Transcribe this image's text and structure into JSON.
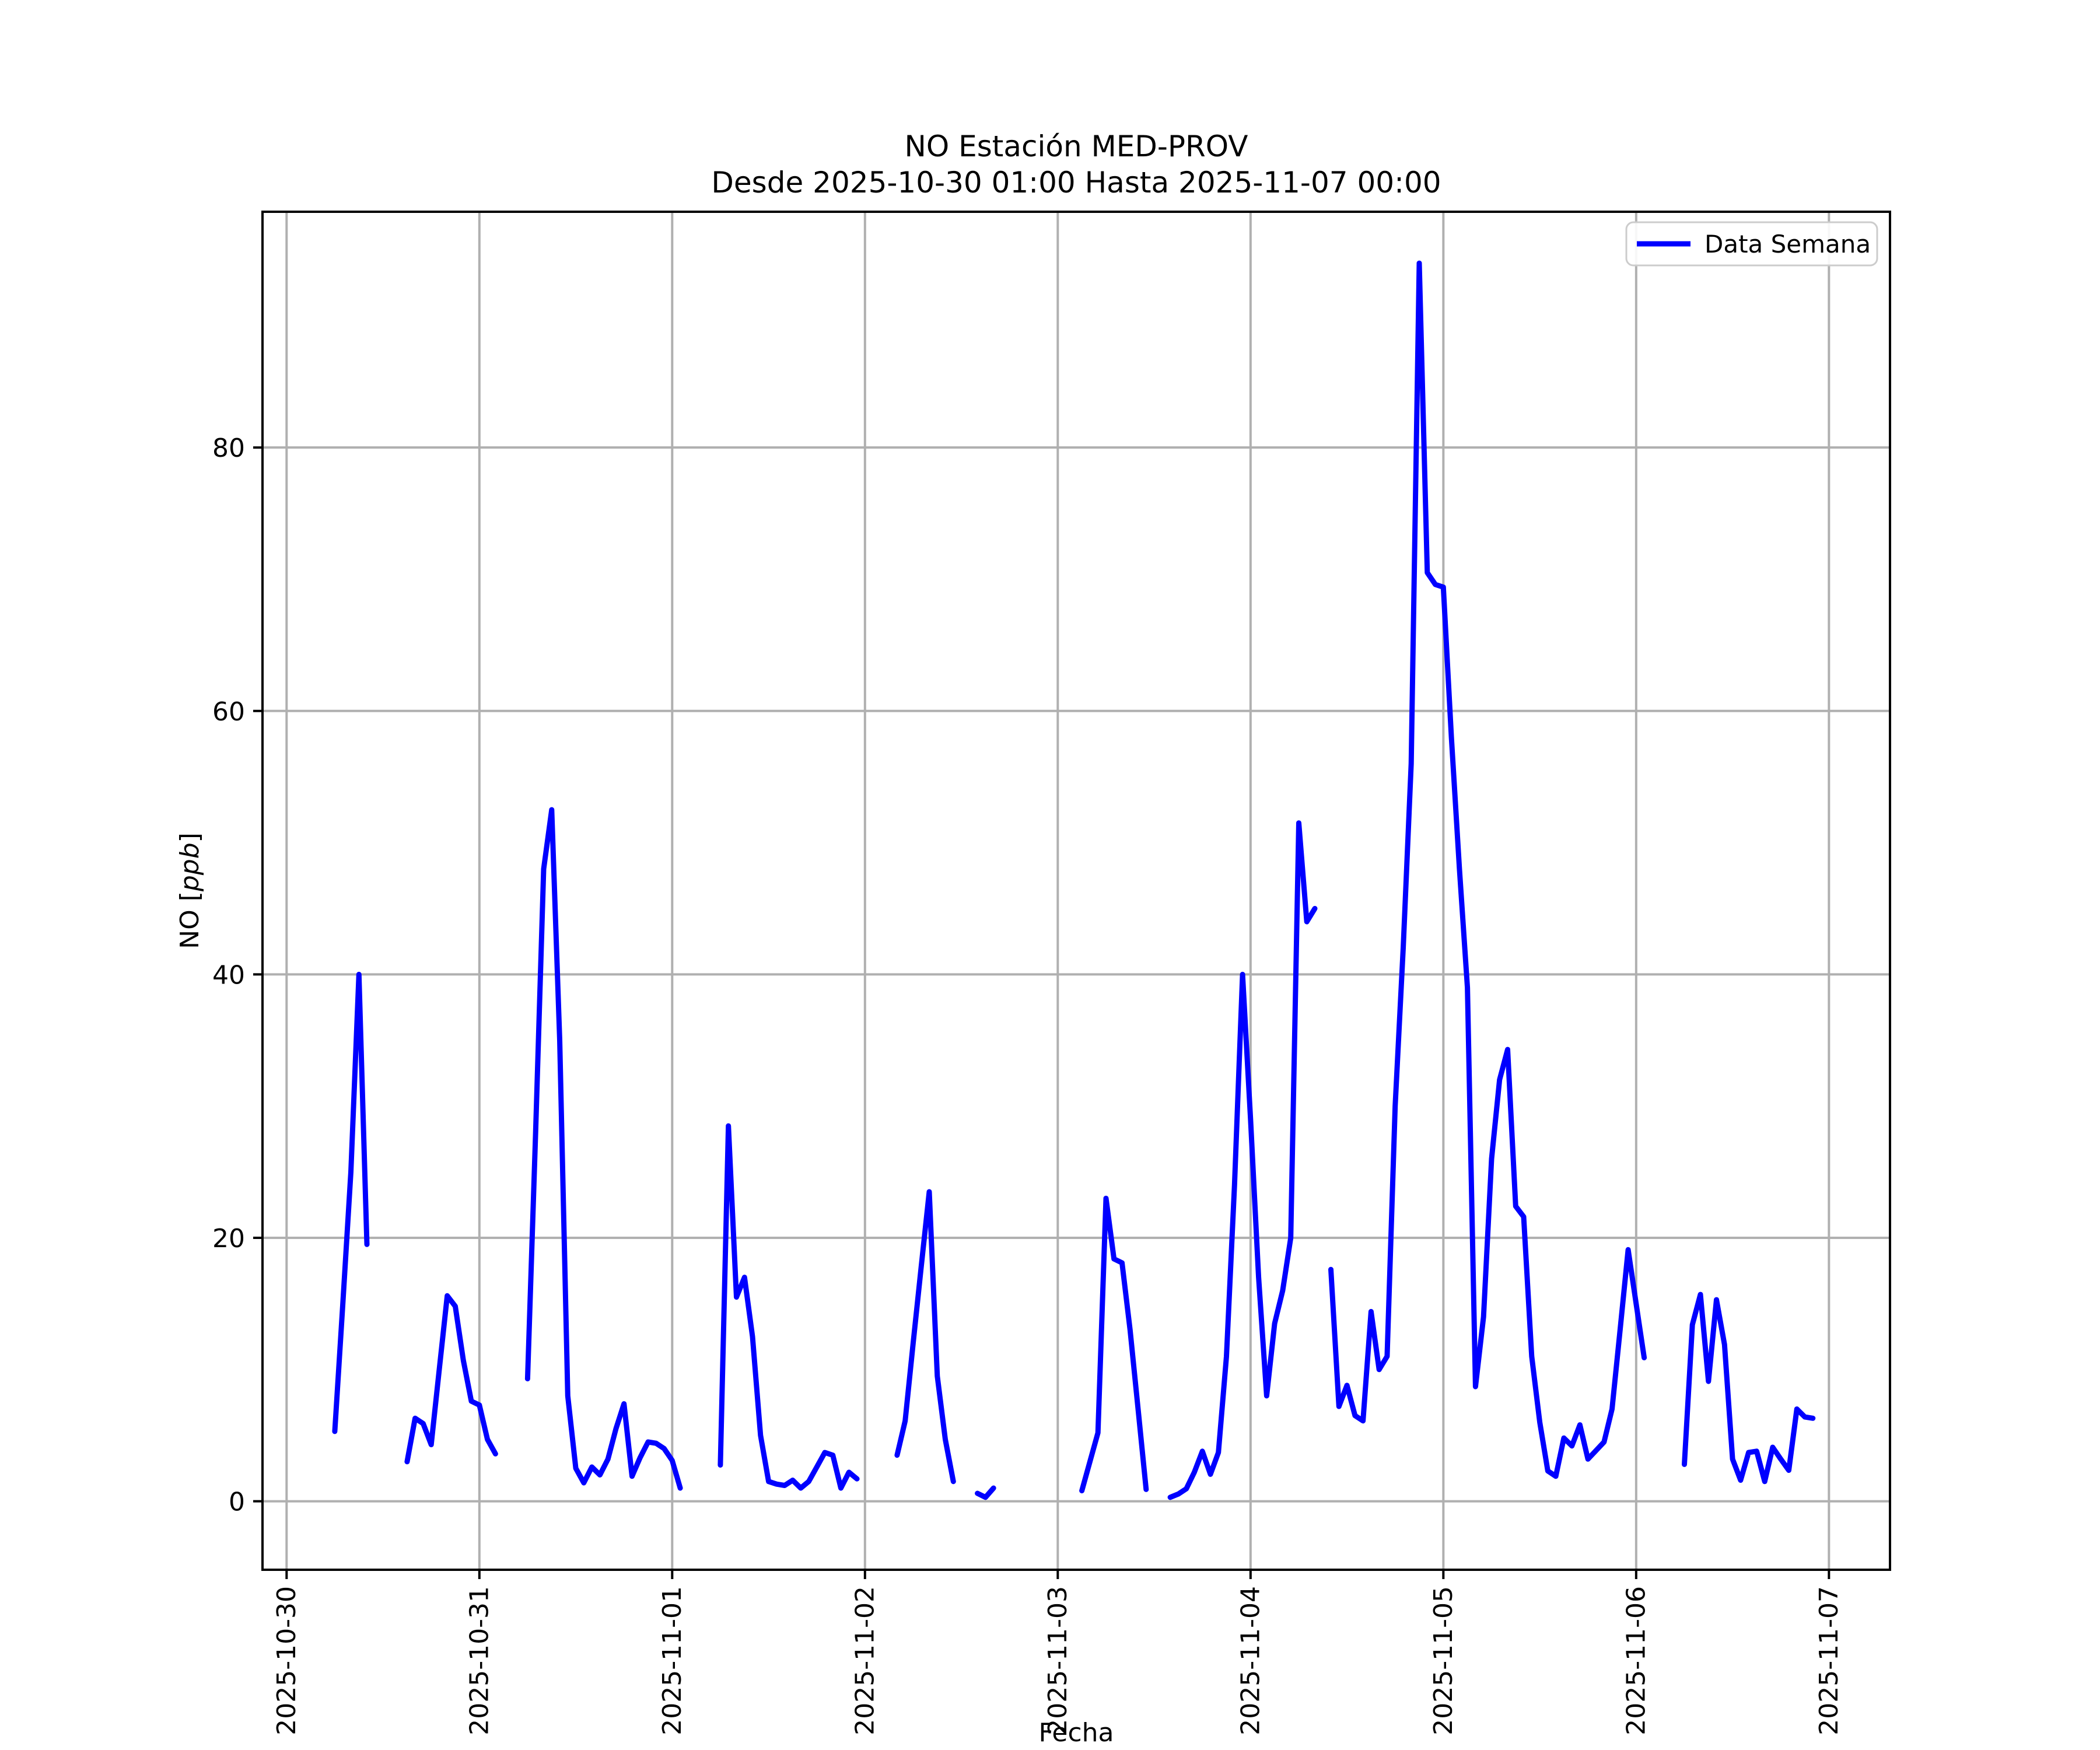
{
  "title": {
    "line1": "NO Estación MED-PROV",
    "line2": "Desde 2025-10-30 01:00 Hasta 2025-11-07 00:00"
  },
  "legend": {
    "entries": [
      {
        "label": "Data Semana",
        "color": "#0000ff"
      }
    ],
    "position": "upper right"
  },
  "axes": {
    "xlabel": "Fecha",
    "ylabel_prefix": "NO [",
    "ylabel_italic": "ppb",
    "ylabel_suffix": "]"
  },
  "colors": {
    "line": "#0000ff",
    "grid": "#b0b0b0",
    "spine": "#000000",
    "legend_border": "#cccccc",
    "background": "#ffffff"
  },
  "chart_data": {
    "type": "line",
    "title": "NO Estación MED-PROV",
    "subtitle": "Desde 2025-10-30 01:00 Hasta 2025-11-07 00:00",
    "xlabel": "Fecha",
    "ylabel": "NO [ppb]",
    "grid": true,
    "legend_position": "upper right",
    "x_start": "2025-10-30 00:00",
    "x_step_hours": 1,
    "x_tick_hours": [
      0,
      24,
      48,
      72,
      96,
      120,
      144,
      168,
      192
    ],
    "x_tick_labels": [
      "2025-10-30",
      "2025-10-31",
      "2025-11-01",
      "2025-11-02",
      "2025-11-03",
      "2025-11-04",
      "2025-11-05",
      "2025-11-06",
      "2025-11-07"
    ],
    "y_ticks": [
      0,
      20,
      40,
      60,
      80
    ],
    "xlim_hours": [
      -3.0,
      199.6
    ],
    "ylim": [
      -5.2,
      97.9
    ],
    "series": [
      {
        "name": "Data Semana",
        "color": "#0000ff",
        "values": [
          null,
          null,
          null,
          null,
          null,
          null,
          5.3,
          15,
          25,
          40,
          19.5,
          null,
          null,
          null,
          null,
          3.0,
          6.3,
          5.9,
          4.3,
          10,
          15.6,
          14.8,
          10.7,
          7.6,
          7.3,
          4.7,
          3.6,
          null,
          null,
          null,
          9.3,
          28,
          48,
          52.5,
          35,
          8,
          2.5,
          1.4,
          2.6,
          2.0,
          3.2,
          5.5,
          7.4,
          1.9,
          3.3,
          4.5,
          4.4,
          4.0,
          3.1,
          1.0,
          null,
          null,
          null,
          null,
          2.75,
          28.5,
          15.5,
          17,
          12.5,
          5,
          1.5,
          1.3,
          1.2,
          1.6,
          1.0,
          1.5,
          2.6,
          3.7,
          3.5,
          1.0,
          2.2,
          1.7,
          null,
          null,
          null,
          null,
          3.5,
          6.1,
          12,
          17.8,
          23.5,
          9.5,
          4.7,
          1.5,
          null,
          null,
          0.6,
          0.3,
          1.0,
          null,
          null,
          null,
          null,
          null,
          null,
          null,
          null,
          null,
          null,
          0.8,
          3.0,
          5.2,
          23,
          18.4,
          18.1,
          13,
          7,
          0.9,
          null,
          null,
          0.3,
          0.55,
          0.95,
          2.2,
          3.8,
          2.05,
          3.7,
          11,
          24,
          40,
          29,
          17,
          8,
          13.5,
          16,
          20,
          51.5,
          44,
          45,
          null,
          17.6,
          7.2,
          8.8,
          6.5,
          6.1,
          14.4,
          10,
          11,
          30,
          42,
          56,
          94,
          70.5,
          69.6,
          69.4,
          58,
          48,
          39,
          8.7,
          14,
          26,
          32,
          34.3,
          22.4,
          21.6,
          11,
          6,
          2.3,
          1.9,
          4.8,
          4.2,
          5.8,
          3.2,
          3.85,
          4.5,
          7.0,
          13,
          19.1,
          15.0,
          10.9,
          null,
          null,
          null,
          null,
          2.8,
          13.4,
          15.7,
          9.1,
          15.3,
          11.9,
          3.2,
          1.6,
          3.7,
          3.8,
          1.5,
          4.1,
          3.2,
          2.35,
          7.0,
          6.4,
          6.3,
          null,
          null
        ]
      }
    ]
  }
}
